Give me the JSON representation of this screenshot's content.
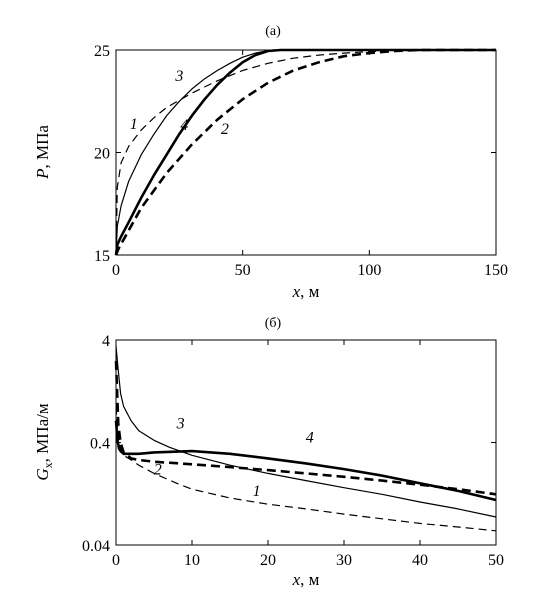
{
  "chart_data": [
    {
      "panel": "(а)",
      "type": "line",
      "xlabel_var": "x",
      "xlabel_unit": ", м",
      "ylabel_var": "P",
      "ylabel_unit": ", МПа",
      "xlim": [
        0,
        150
      ],
      "ylim": [
        15,
        25
      ],
      "yscale": "linear",
      "xticks": [
        0,
        50,
        100,
        150
      ],
      "yticks": [
        15,
        20,
        25
      ],
      "xtick_labels": [
        "0",
        "50",
        "100",
        "150"
      ],
      "ytick_labels": [
        "15",
        "20",
        "25"
      ],
      "grid": false,
      "series": [
        {
          "name": "1",
          "style": "thin-dashed",
          "x": [
            0,
            0.5,
            2,
            5,
            10,
            15,
            20,
            30,
            40,
            50,
            60,
            70,
            80,
            90,
            100,
            110,
            120,
            130,
            150
          ],
          "y": [
            15.0,
            18.3,
            19.5,
            20.3,
            21.1,
            21.7,
            22.2,
            22.9,
            23.5,
            24.0,
            24.35,
            24.6,
            24.75,
            24.85,
            24.92,
            24.96,
            25.0,
            25.0,
            25.0
          ]
        },
        {
          "name": "2",
          "style": "thick-dashed",
          "x": [
            0,
            1,
            5,
            10,
            20,
            30,
            40,
            50,
            60,
            70,
            80,
            90,
            100,
            110,
            120,
            130,
            150
          ],
          "y": [
            15.0,
            15.3,
            16.2,
            17.3,
            19.0,
            20.4,
            21.6,
            22.6,
            23.4,
            24.0,
            24.4,
            24.7,
            24.85,
            24.95,
            25.0,
            25.0,
            25.0
          ]
        },
        {
          "name": "3",
          "style": "thin-solid",
          "x": [
            0,
            0.5,
            2,
            5,
            10,
            15,
            20,
            25,
            30,
            35,
            40,
            45,
            50,
            55,
            60,
            62,
            150
          ],
          "y": [
            15.0,
            16.4,
            17.4,
            18.6,
            19.9,
            20.9,
            21.8,
            22.5,
            23.1,
            23.6,
            24.0,
            24.35,
            24.65,
            24.85,
            24.97,
            25.0,
            25.0
          ]
        },
        {
          "name": "4",
          "style": "thick-solid",
          "x": [
            0,
            0.5,
            2,
            5,
            10,
            15,
            20,
            25,
            30,
            35,
            40,
            45,
            50,
            55,
            60,
            65,
            150
          ],
          "y": [
            15.0,
            15.5,
            15.9,
            16.6,
            17.8,
            18.9,
            19.9,
            20.9,
            21.8,
            22.6,
            23.3,
            23.9,
            24.4,
            24.75,
            24.95,
            25.0,
            25.0
          ]
        }
      ],
      "curve_labels": [
        {
          "text": "1",
          "x": 7,
          "y": 21.15
        },
        {
          "text": "2",
          "x": 43,
          "y": 20.9
        },
        {
          "text": "3",
          "x": 25,
          "y": 23.5
        },
        {
          "text": "4",
          "x": 27,
          "y": 21.1
        }
      ]
    },
    {
      "panel": "(б)",
      "type": "line",
      "xlabel_var": "x",
      "xlabel_unit": ", м",
      "ylabel_var": "G",
      "ylabel_sub": "x",
      "ylabel_unit": ", МПа/м",
      "xlim": [
        0,
        50
      ],
      "ylim": [
        0.04,
        4
      ],
      "yscale": "log",
      "xticks": [
        0,
        10,
        20,
        30,
        40,
        50
      ],
      "yticks": [
        0.04,
        0.4,
        4
      ],
      "xtick_labels": [
        "0",
        "10",
        "20",
        "30",
        "40",
        "50"
      ],
      "ytick_labels": [
        "0.04",
        "0.4",
        "4"
      ],
      "grid": false,
      "series": [
        {
          "name": "1",
          "style": "thin-dashed",
          "x": [
            0,
            0.3,
            0.6,
            1,
            2,
            3,
            5,
            8,
            10,
            15,
            20,
            25,
            30,
            35,
            40,
            45,
            50
          ],
          "y": [
            0.9,
            0.45,
            0.35,
            0.3,
            0.27,
            0.24,
            0.2,
            0.16,
            0.14,
            0.115,
            0.1,
            0.09,
            0.08,
            0.072,
            0.065,
            0.06,
            0.055
          ]
        },
        {
          "name": "2",
          "style": "thick-dashed",
          "x": [
            0,
            0.3,
            0.6,
            1,
            2,
            3,
            5,
            10,
            15,
            20,
            25,
            30,
            35,
            40,
            45,
            50
          ],
          "y": [
            2.5,
            0.6,
            0.4,
            0.32,
            0.28,
            0.27,
            0.26,
            0.245,
            0.23,
            0.215,
            0.2,
            0.185,
            0.17,
            0.155,
            0.14,
            0.125
          ]
        },
        {
          "name": "3",
          "style": "thin-solid",
          "x": [
            0,
            0.3,
            0.6,
            1,
            2,
            3,
            5,
            7,
            10,
            15,
            20,
            25,
            30,
            35,
            40,
            45,
            50
          ],
          "y": [
            3.5,
            2.0,
            1.2,
            0.9,
            0.65,
            0.52,
            0.42,
            0.36,
            0.3,
            0.24,
            0.2,
            0.17,
            0.145,
            0.125,
            0.105,
            0.09,
            0.075
          ]
        },
        {
          "name": "4",
          "style": "thick-solid",
          "x": [
            0,
            0.2,
            0.4,
            0.6,
            1,
            2,
            3,
            5,
            10,
            15,
            20,
            25,
            30,
            35,
            40,
            45,
            50
          ],
          "y": [
            0.65,
            0.42,
            0.35,
            0.33,
            0.31,
            0.31,
            0.31,
            0.32,
            0.33,
            0.31,
            0.28,
            0.25,
            0.22,
            0.19,
            0.16,
            0.135,
            0.11
          ]
        }
      ],
      "curve_labels": [
        {
          "text": "1",
          "x": 18.5,
          "y": 0.12
        },
        {
          "text": "2",
          "x": 5.5,
          "y": 0.195
        },
        {
          "text": "3",
          "x": 8.5,
          "y": 0.55
        },
        {
          "text": "4",
          "x": 25.5,
          "y": 0.4
        }
      ]
    }
  ]
}
